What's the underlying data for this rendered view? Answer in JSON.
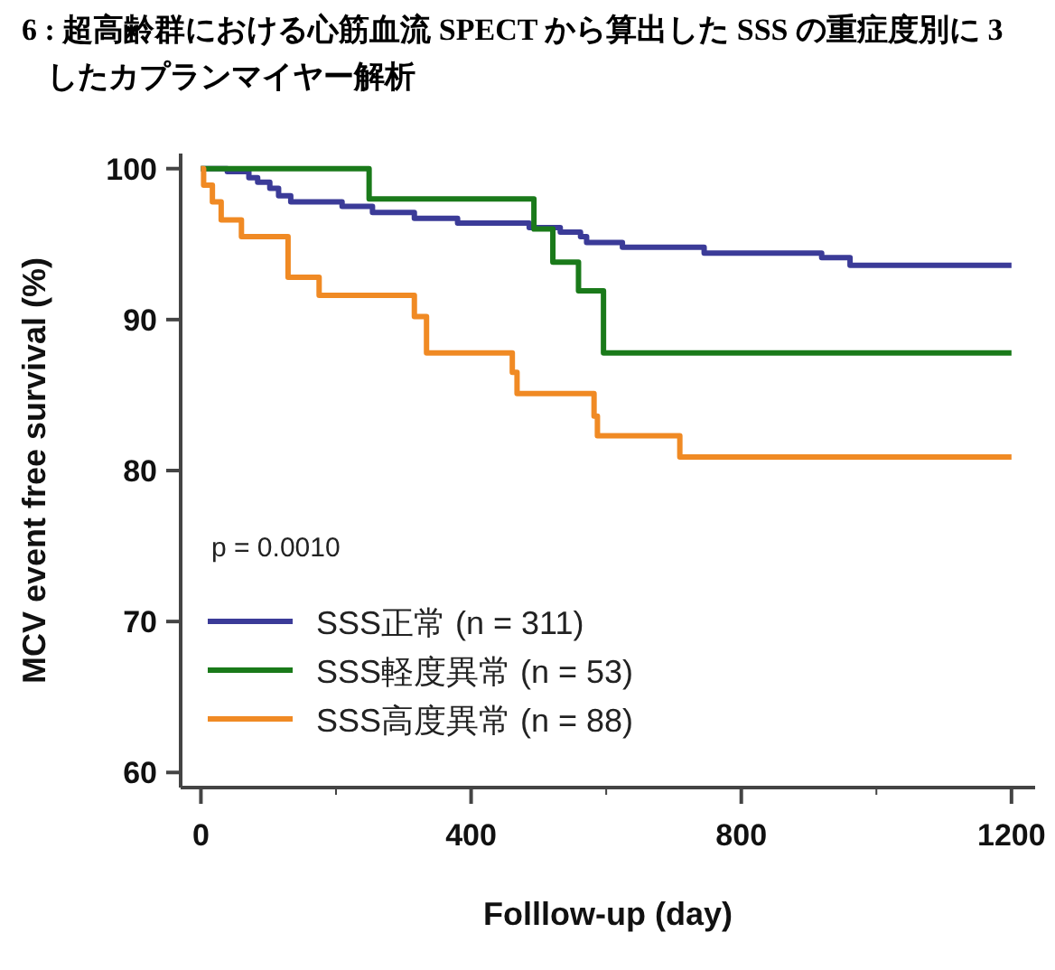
{
  "chart_data": {
    "type": "step",
    "title": "6 : 超高齢群における心筋血流 SPECT から算出した SSS の重症度別に 3したカプランマイヤー解析",
    "xlabel": "Folllow-up (day)",
    "ylabel": "MCV event free survival (%)",
    "annotations": [
      "p = 0.0010"
    ],
    "series": [
      {
        "name": "SSS正常 (n = 311)",
        "color": "#3b3b98",
        "x": [
          0,
          39,
          71,
          84,
          102,
          115,
          133,
          209,
          254,
          316,
          380,
          486,
          532,
          562,
          571,
          624,
          745,
          919,
          961,
          1200
        ],
        "values": [
          100,
          99.8,
          99.4,
          99.1,
          98.7,
          98.2,
          97.8,
          97.5,
          97.1,
          96.7,
          96.4,
          96.1,
          95.8,
          95.5,
          95.1,
          94.8,
          94.4,
          94.1,
          93.6,
          93.6
        ]
      },
      {
        "name": "SSS軽度異常 (n = 53)",
        "color": "#1a7a1a",
        "x": [
          0,
          249,
          493,
          521,
          559,
          596,
          1200
        ],
        "values": [
          100,
          98,
          96,
          93.8,
          91.9,
          87.8,
          87.8
        ]
      },
      {
        "name": "SSS高度異常 (n = 88)",
        "color": "#f08a24",
        "x": [
          0,
          4,
          17,
          30,
          60,
          129,
          175,
          316,
          334,
          461,
          468,
          582,
          587,
          709,
          1200
        ],
        "values": [
          100,
          98.9,
          97.8,
          96.6,
          95.5,
          92.8,
          91.6,
          90.2,
          87.8,
          86.5,
          85.1,
          83.6,
          82.3,
          80.9,
          80.9
        ]
      }
    ],
    "xlim": [
      -30,
      1235
    ],
    "ylim": [
      59,
      101
    ],
    "xticks": [
      0,
      {
        "value": 200,
        "label": null
      },
      400,
      {
        "value": 600,
        "label": null
      },
      800,
      {
        "value": 1000,
        "label": null
      },
      1200
    ],
    "yticks": [
      60,
      70,
      80,
      90,
      100
    ],
    "legend": "bottom left",
    "grid": false,
    "line_style": "solid"
  }
}
